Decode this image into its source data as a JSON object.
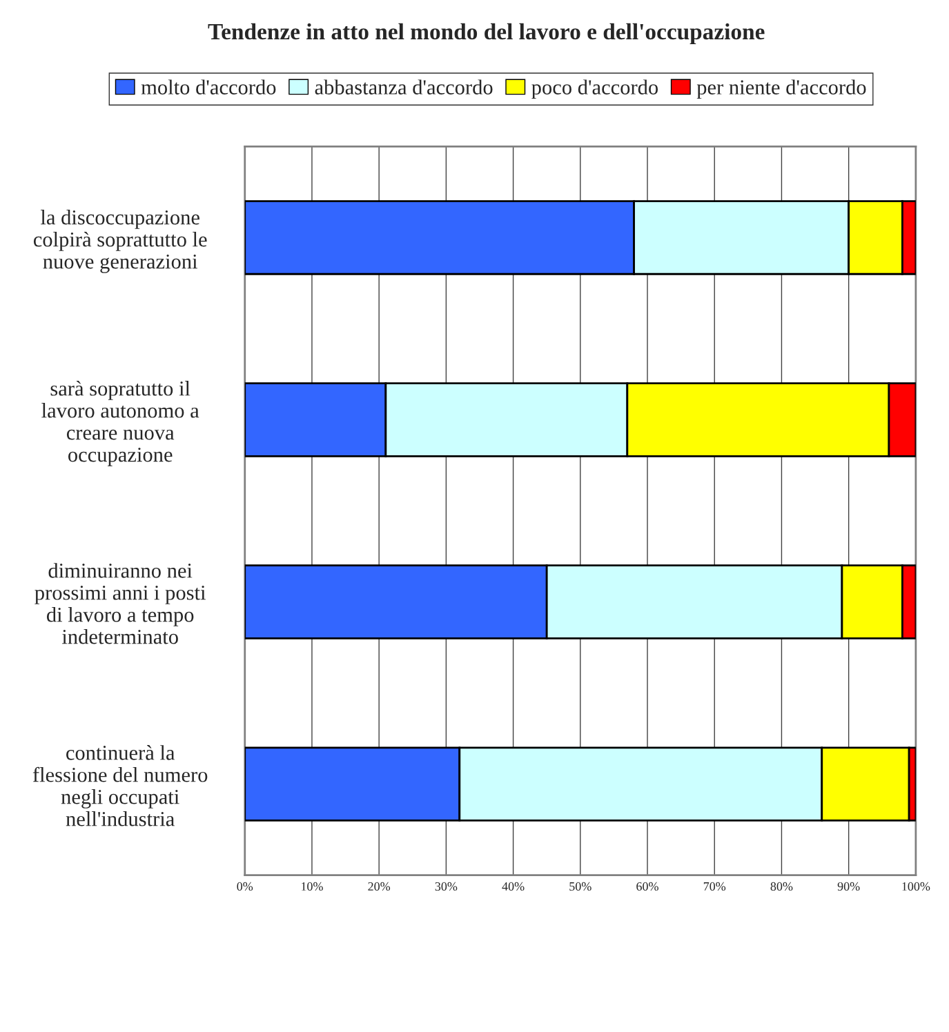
{
  "chart_data": {
    "type": "bar",
    "orientation": "horizontal",
    "stacked": true,
    "title": "Tendenze in atto nel mondo del lavoro e dell'occupazione",
    "categories": [
      "la discoccupazione colpirà soprattutto le nuove generazioni",
      "sarà sopratutto il lavoro autonomo a creare nuova occupazione",
      "diminuiranno nei prossimi anni i posti di lavoro a tempo indeterminato",
      "continuerà la flessione del numero negli occupati nell'industria"
    ],
    "series": [
      {
        "name": "molto d'accordo",
        "color": "#3366ff",
        "values": [
          58,
          21,
          45,
          32
        ]
      },
      {
        "name": "abbastanza d'accordo",
        "color": "#ccffff",
        "values": [
          32,
          36,
          44,
          54
        ]
      },
      {
        "name": "poco d'accordo",
        "color": "#ffff00",
        "values": [
          8,
          39,
          9,
          13
        ]
      },
      {
        "name": "per niente d'accordo",
        "color": "#ff0000",
        "values": [
          2,
          4,
          2,
          1
        ]
      }
    ],
    "xlim": [
      0,
      100
    ],
    "xticks": [
      {
        "value": 0,
        "label": "0%"
      },
      {
        "value": 10,
        "label": "10%"
      },
      {
        "value": 20,
        "label": "20%"
      },
      {
        "value": 30,
        "label": "30%"
      },
      {
        "value": 40,
        "label": "40%"
      },
      {
        "value": 50,
        "label": "50%"
      },
      {
        "value": 60,
        "label": "60%"
      },
      {
        "value": 70,
        "label": "70%"
      },
      {
        "value": 80,
        "label": "80%"
      },
      {
        "value": 90,
        "label": "90%"
      },
      {
        "value": 100,
        "label": "100%"
      }
    ],
    "grid": "x",
    "legend": "top"
  }
}
